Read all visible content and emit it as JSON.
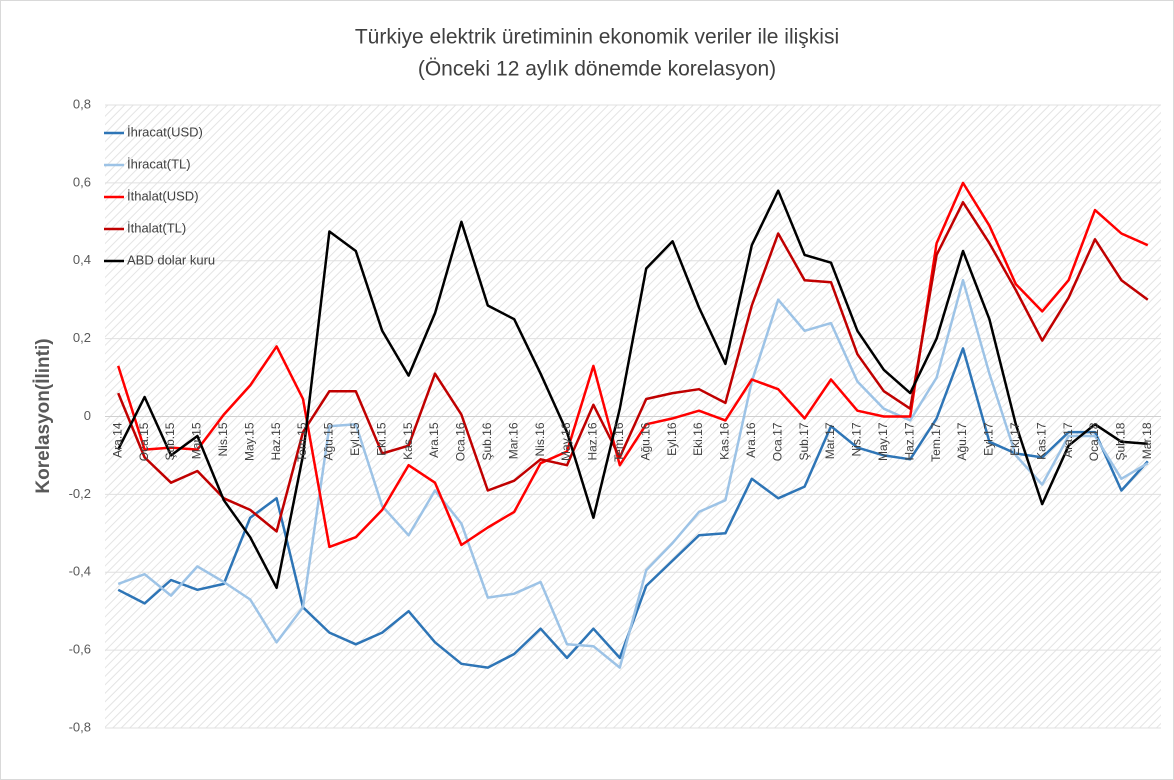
{
  "chart_data": {
    "type": "line",
    "title": "Türkiye elektrik üretiminin ekonomik veriler ile ilişkisi",
    "subtitle": "(Önceki 12 aylık dönemde korelasyon)",
    "y_label": "Korelasyon(İlinti)",
    "categories": [
      "Ara.14",
      "Oca.15",
      "Şub.15",
      "Mar.15",
      "Nis.15",
      "May.15",
      "Haz.15",
      "Tem.15",
      "Ağu.15",
      "Eyl.15",
      "Eki.15",
      "Kas.15",
      "Ara.15",
      "Oca.16",
      "Şub.16",
      "Mar.16",
      "Nis.16",
      "May.16",
      "Haz.16",
      "Tem.16",
      "Ağu.16",
      "Eyl.16",
      "Eki.16",
      "Kas.16",
      "Ara.16",
      "Oca.17",
      "Şub.17",
      "Mar.17",
      "Nis.17",
      "May.17",
      "Haz.17",
      "Tem.17",
      "Ağu.17",
      "Eyl.17",
      "Eki.17",
      "Kas.17",
      "Ara.17",
      "Oca.18",
      "Şub.18",
      "Mar.18"
    ],
    "series": [
      {
        "name": "İhracat(USD)",
        "color": "#2e75b6",
        "values": [
          -0.445,
          -0.48,
          -0.42,
          -0.445,
          -0.43,
          -0.26,
          -0.21,
          -0.49,
          -0.555,
          -0.585,
          -0.555,
          -0.5,
          -0.58,
          -0.635,
          -0.645,
          -0.61,
          -0.545,
          -0.62,
          -0.545,
          -0.62,
          -0.435,
          -0.37,
          -0.305,
          -0.3,
          -0.16,
          -0.21,
          -0.18,
          -0.025,
          -0.08,
          -0.1,
          -0.11,
          -0.005,
          0.175,
          -0.065,
          -0.095,
          -0.105,
          -0.04,
          -0.04,
          -0.19,
          -0.115
        ]
      },
      {
        "name": "İhracat(TL)",
        "color": "#9dc3e6",
        "values": [
          -0.43,
          -0.405,
          -0.46,
          -0.385,
          -0.425,
          -0.47,
          -0.58,
          -0.49,
          -0.025,
          -0.02,
          -0.23,
          -0.305,
          -0.19,
          -0.275,
          -0.465,
          -0.455,
          -0.425,
          -0.585,
          -0.59,
          -0.645,
          -0.395,
          -0.325,
          -0.245,
          -0.215,
          0.09,
          0.3,
          0.22,
          0.24,
          0.09,
          0.02,
          -0.01,
          0.1,
          0.35,
          0.11,
          -0.1,
          -0.175,
          -0.05,
          -0.05,
          -0.16,
          -0.12
        ]
      },
      {
        "name": "İthalat(USD)",
        "color": "#ff0000",
        "values": [
          0.13,
          -0.085,
          -0.08,
          -0.085,
          0.005,
          0.08,
          0.18,
          0.045,
          -0.335,
          -0.31,
          -0.24,
          -0.125,
          -0.17,
          -0.33,
          -0.285,
          -0.245,
          -0.12,
          -0.09,
          0.13,
          -0.125,
          -0.02,
          -0.005,
          0.015,
          -0.01,
          0.095,
          0.07,
          -0.005,
          0.095,
          0.015,
          0,
          0,
          0.445,
          0.6,
          0.49,
          0.34,
          0.27,
          0.35,
          0.53,
          0.47,
          0.44
        ]
      },
      {
        "name": "İthalat(TL)",
        "color": "#c00000",
        "values": [
          0.06,
          -0.105,
          -0.17,
          -0.14,
          -0.21,
          -0.24,
          -0.295,
          -0.04,
          0.065,
          0.065,
          -0.095,
          -0.075,
          0.11,
          0.005,
          -0.19,
          -0.165,
          -0.11,
          -0.125,
          0.03,
          -0.105,
          0.045,
          0.06,
          0.07,
          0.035,
          0.285,
          0.47,
          0.35,
          0.345,
          0.16,
          0.065,
          0.02,
          0.415,
          0.55,
          0.445,
          0.325,
          0.195,
          0.305,
          0.455,
          0.35,
          0.3
        ]
      },
      {
        "name": "ABD dolar kuru",
        "color": "#000000",
        "values": [
          -0.085,
          0.05,
          -0.1,
          -0.05,
          -0.215,
          -0.31,
          -0.44,
          -0.1,
          0.475,
          0.425,
          0.22,
          0.105,
          0.265,
          0.5,
          0.285,
          0.25,
          0.11,
          -0.04,
          -0.26,
          0.02,
          0.38,
          0.45,
          0.28,
          0.135,
          0.44,
          0.58,
          0.415,
          0.395,
          0.22,
          0.12,
          0.06,
          0.2,
          0.425,
          0.25,
          -0.02,
          -0.225,
          -0.075,
          -0.02,
          -0.065,
          -0.07
        ]
      }
    ],
    "ylim": [
      -0.8,
      0.8
    ],
    "yticks": [
      {
        "value": -0.8,
        "label": "-0,8"
      },
      {
        "value": -0.6,
        "label": "-0,6"
      },
      {
        "value": -0.4,
        "label": "-0,4"
      },
      {
        "value": -0.2,
        "label": "-0,2"
      },
      0,
      {
        "value": 0.2,
        "label": "0,2"
      },
      {
        "value": 0.4,
        "label": "0,4"
      },
      {
        "value": 0.6,
        "label": "0,6"
      },
      {
        "value": 0.8,
        "label": "0,8"
      }
    ],
    "grid": true,
    "legend": "upper left"
  }
}
